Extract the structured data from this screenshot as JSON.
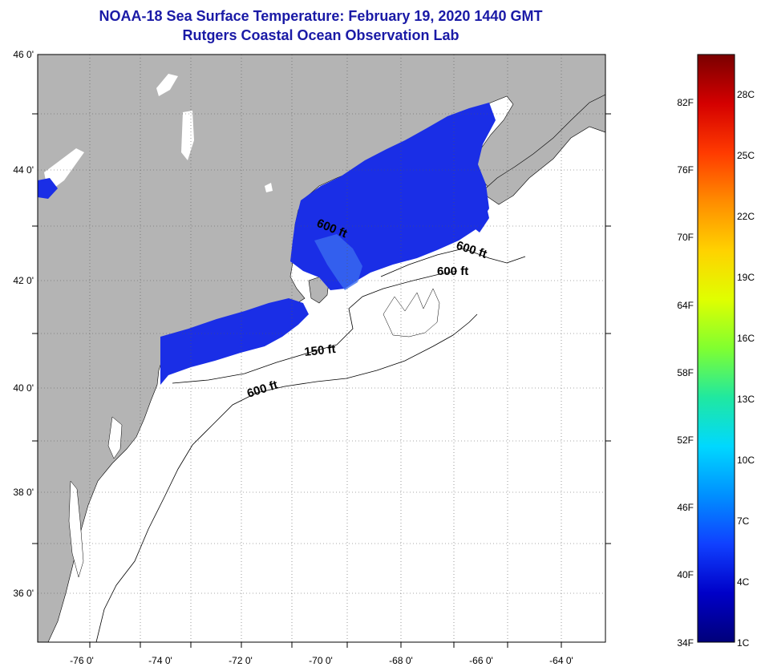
{
  "title": {
    "line1": "NOAA-18 Sea Surface Temperature:  February 19, 2020 1440 GMT",
    "line2": "Rutgers Coastal Ocean Observation Lab"
  },
  "map": {
    "lat_labels": [
      "46 0'",
      "44 0'",
      "42 0'",
      "40 0'",
      "38 0'",
      "36 0'"
    ],
    "lon_labels": [
      "-76 0'",
      "-74 0'",
      "-72 0'",
      "-70 0'",
      "-68 0'",
      "-66 0'",
      "-64 0'"
    ],
    "contour_labels": [
      "600 ft",
      "600 ft",
      "600 ft",
      "150 ft",
      "600 ft"
    ],
    "colors": {
      "land": "#b4b4b4",
      "ocean": "#ffffff",
      "sst_dark": "#1a1ae0",
      "sst_light": "#3a6cf0"
    }
  },
  "colorbar": {
    "fahrenheit": [
      "82F",
      "76F",
      "70F",
      "64F",
      "58F",
      "52F",
      "46F",
      "40F",
      "34F"
    ],
    "celsius": [
      "28C",
      "25C",
      "22C",
      "19C",
      "16C",
      "13C",
      "10C",
      "7C",
      "4C",
      "1C"
    ],
    "gradient": [
      "#7a0000",
      "#d40000",
      "#ff3a00",
      "#ff8c00",
      "#ffd200",
      "#e0ff00",
      "#80ff30",
      "#20e8a0",
      "#00d8ff",
      "#0090ff",
      "#1040ff",
      "#0000c8",
      "#00007a"
    ]
  }
}
